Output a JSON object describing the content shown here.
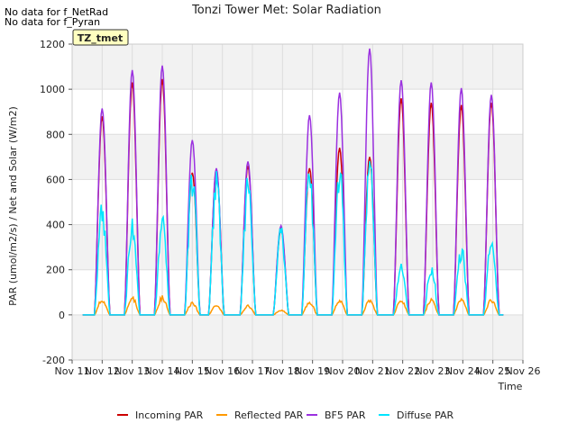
{
  "notes": [
    "No data for f_NetRad",
    "No data for f_Pyran"
  ],
  "badge": "TZ_tmet",
  "chart_data": {
    "type": "line",
    "title": "Tonzi Tower Met: Solar Radiation",
    "xlabel": "Time",
    "ylabel": "PAR (umol/m2/s) / Net and Solar (W/m2)",
    "ylim": [
      -200,
      1200
    ],
    "xlim": [
      11,
      26
    ],
    "yticks": [
      -200,
      0,
      200,
      400,
      600,
      800,
      1000,
      1200
    ],
    "xticks": [
      11,
      12,
      13,
      14,
      15,
      16,
      17,
      18,
      19,
      20,
      21,
      22,
      23,
      24,
      25,
      26
    ],
    "xtick_labels": [
      "Nov 11",
      "Nov 12",
      "Nov 13",
      "Nov 14",
      "Nov 15",
      "Nov 16",
      "Nov 17",
      "Nov 18",
      "Nov 19",
      "Nov 20",
      "Nov 21",
      "Nov 22",
      "Nov 23",
      "Nov 24",
      "Nov 25",
      "Nov 26"
    ],
    "bands": [
      [
        -200,
        0
      ],
      [
        200,
        400
      ],
      [
        600,
        800
      ],
      [
        1000,
        1200
      ]
    ],
    "grid": true,
    "legend_position": "bottom",
    "day_centers": [
      12.0,
      13.0,
      14.0,
      15.0,
      15.8,
      16.85,
      17.95,
      18.9,
      19.9,
      20.9,
      21.95,
      22.95,
      23.95,
      24.95
    ],
    "series": [
      {
        "name": "Incoming PAR",
        "color": "#cc0000",
        "peaks": [
          880,
          1030,
          1045,
          630,
          640,
          660,
          380,
          650,
          740,
          700,
          960,
          940,
          930,
          940
        ]
      },
      {
        "name": "Reflected PAR",
        "color": "#ff9900",
        "peaks": [
          65,
          75,
          75,
          50,
          40,
          40,
          20,
          55,
          60,
          60,
          65,
          65,
          65,
          65
        ]
      },
      {
        "name": "BF5 PAR",
        "color": "#9b30e0",
        "peaks": [
          915,
          1085,
          1105,
          775,
          650,
          680,
          395,
          885,
          985,
          1180,
          1040,
          1030,
          1005,
          975
        ]
      },
      {
        "name": "Diffuse PAR",
        "color": "#00e5ff",
        "peaks": [
          460,
          390,
          395,
          600,
          580,
          560,
          380,
          620,
          620,
          670,
          210,
          200,
          280,
          310
        ]
      }
    ]
  }
}
